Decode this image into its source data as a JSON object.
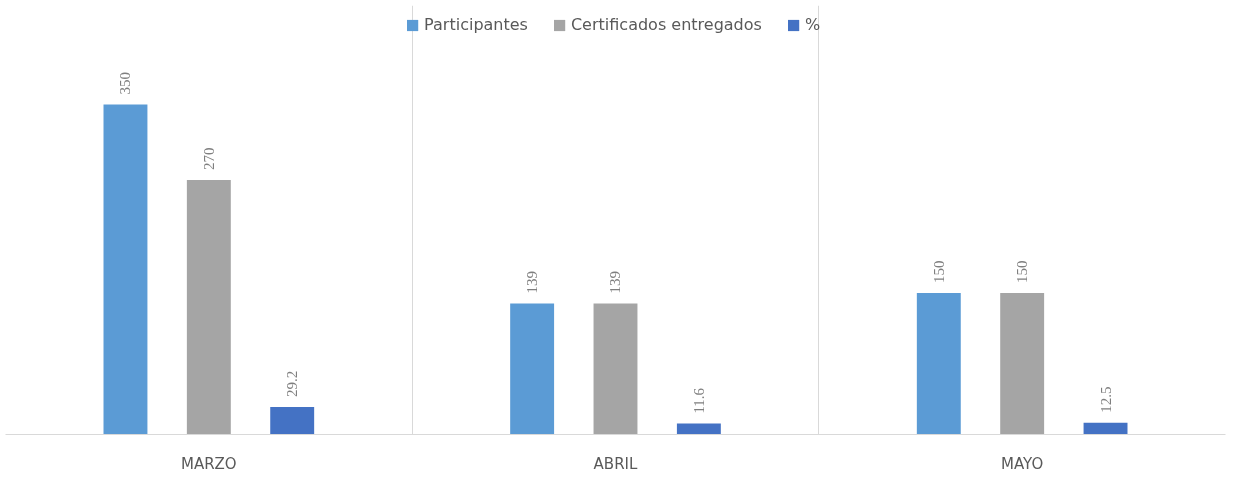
{
  "chart_data": {
    "type": "bar",
    "categories": [
      "MARZO",
      "ABRIL",
      "MAYO"
    ],
    "series": [
      {
        "name": "Participantes",
        "color": "#5b9bd5",
        "values": [
          350,
          139,
          150
        ]
      },
      {
        "name": "Certificados entregados",
        "color": "#a5a5a5",
        "values": [
          270,
          139,
          150
        ]
      },
      {
        "name": "%",
        "color": "#4472c4",
        "values": [
          29.2,
          11.6,
          12.5
        ]
      }
    ],
    "data_labels": true,
    "grid": "x",
    "legend": "top",
    "tick_labels": "x"
  }
}
